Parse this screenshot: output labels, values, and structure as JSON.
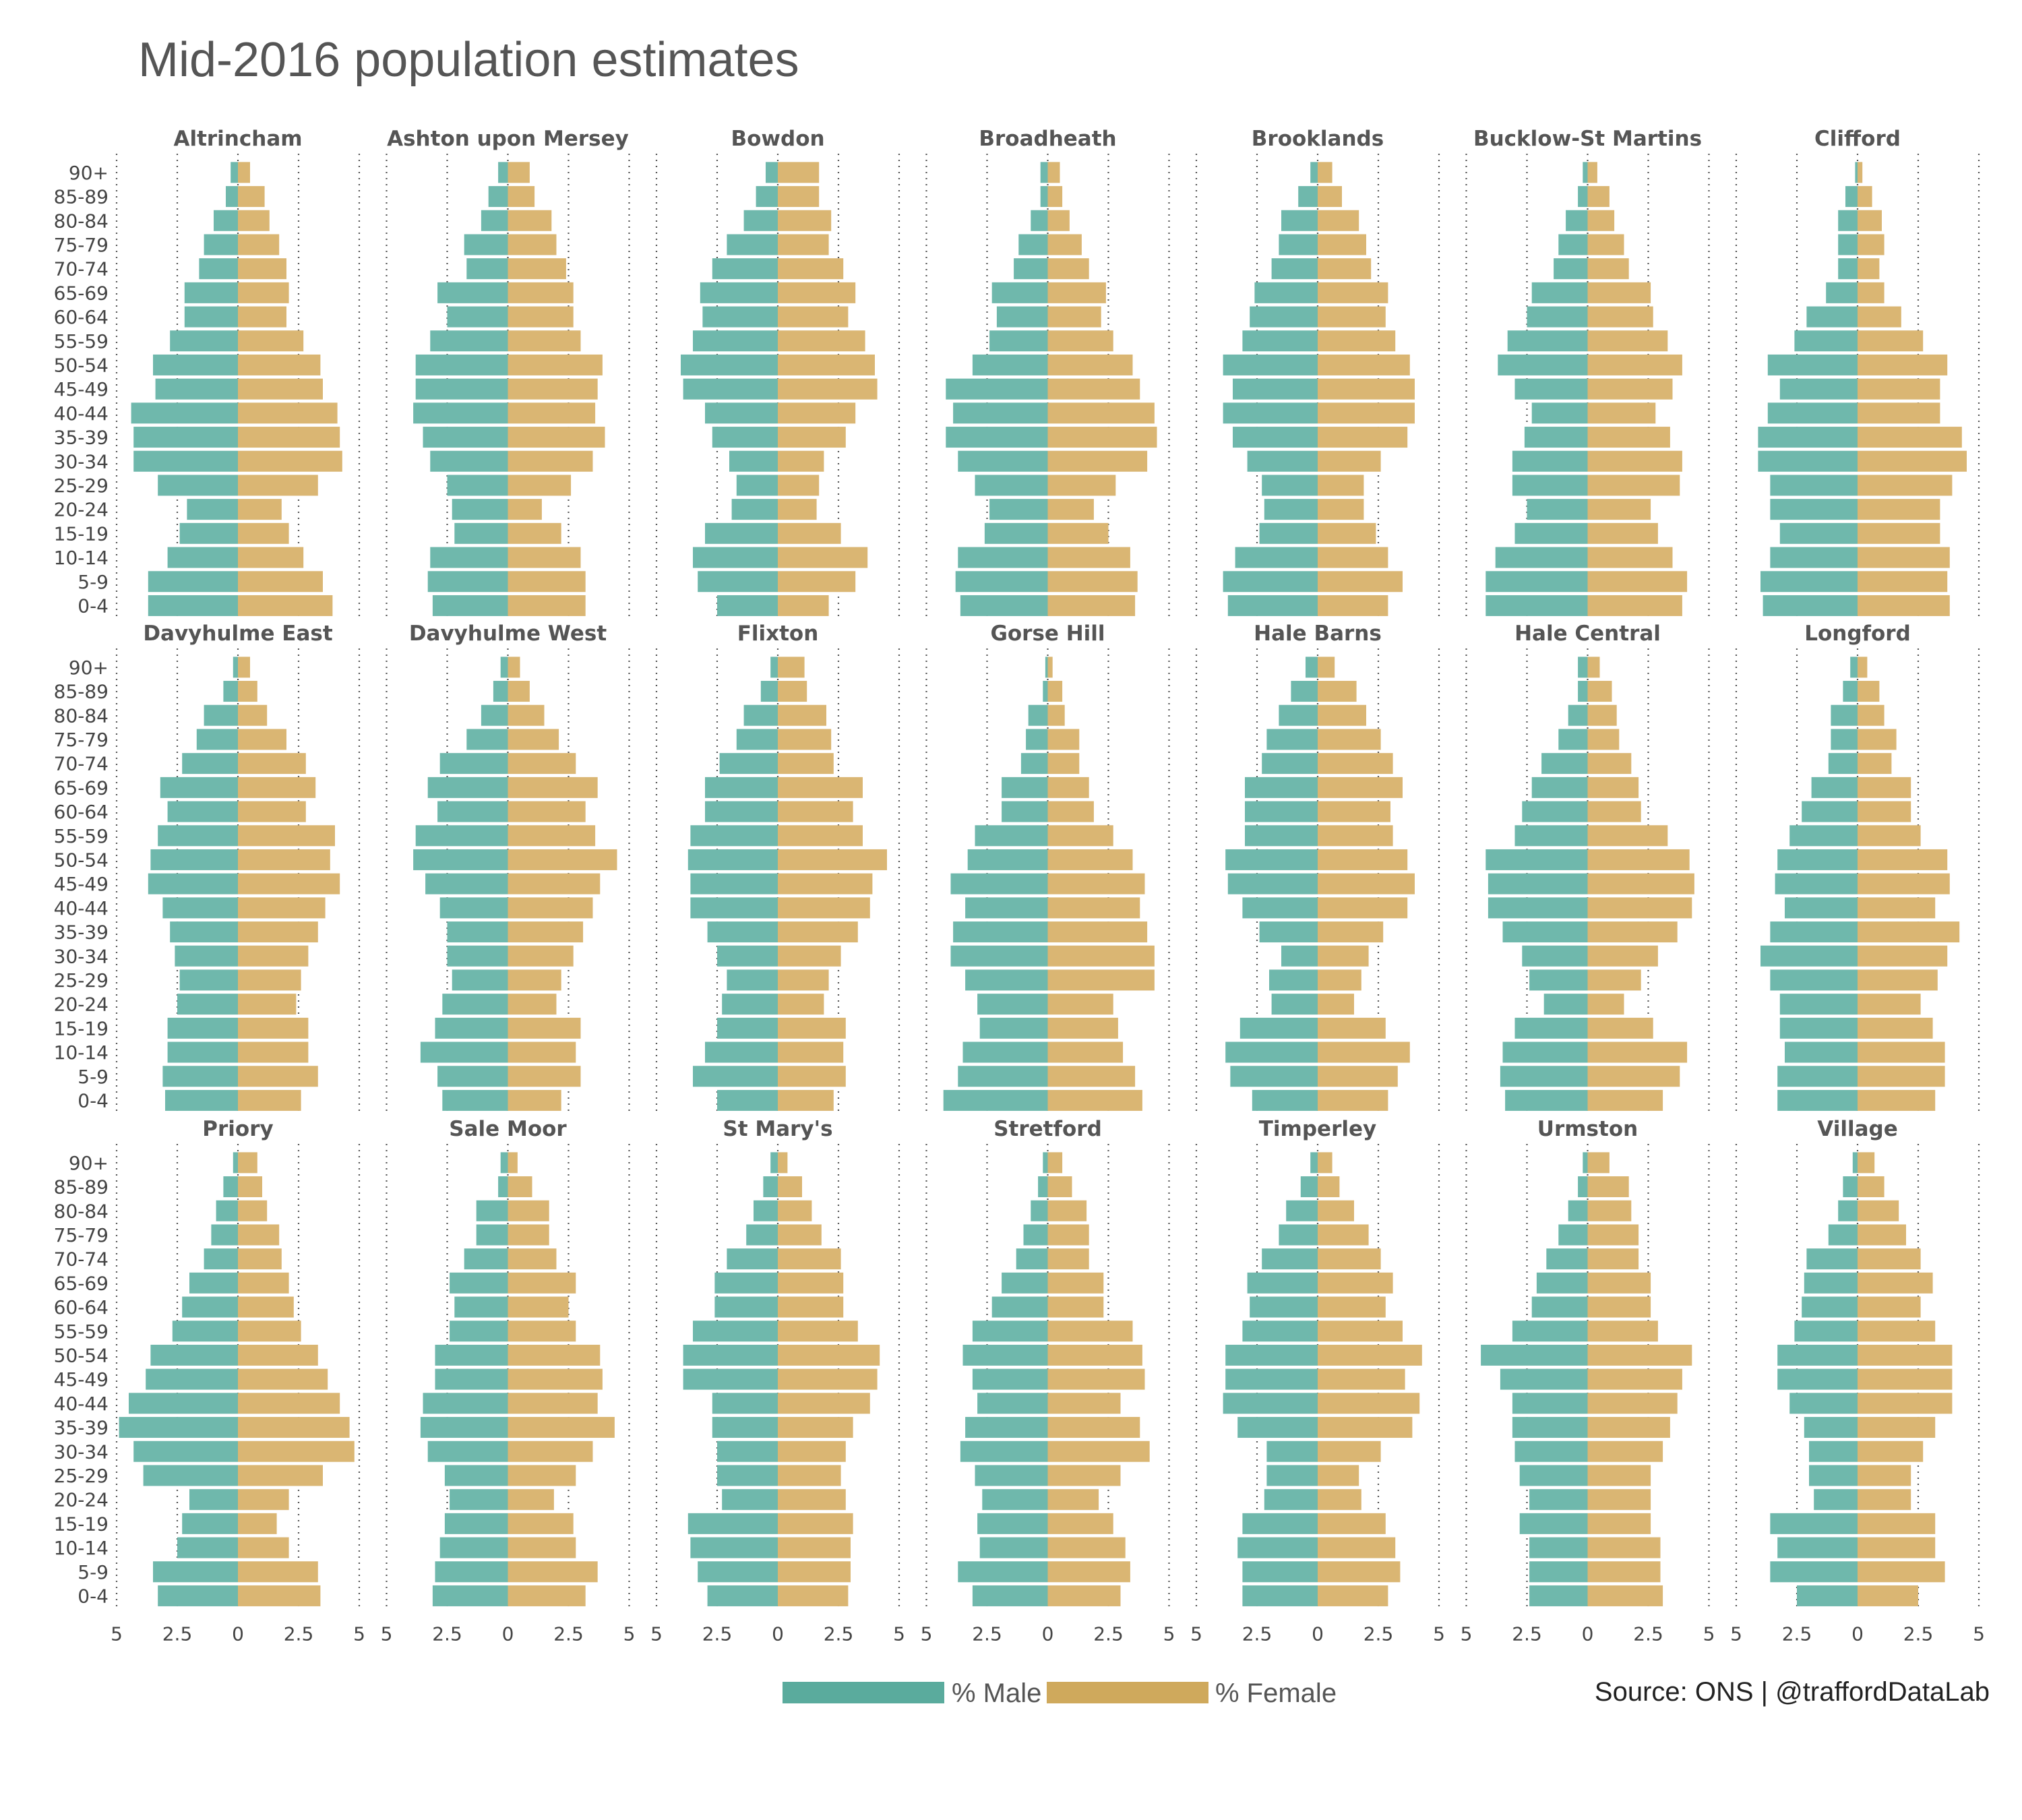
{
  "title": "Mid-2016 population estimates",
  "caption": "Source: ONS  |  @traffordDataLab",
  "colors": {
    "male": "#6fb8ac",
    "female": "#dab673",
    "male_legend": "#5aab9d",
    "female_legend": "#cfa95c"
  },
  "chart_data": {
    "type": "bar",
    "subtype": "population-pyramid-facets",
    "age_groups": [
      "0-4",
      "5-9",
      "10-14",
      "15-19",
      "20-24",
      "25-29",
      "30-34",
      "35-39",
      "40-44",
      "45-49",
      "50-54",
      "55-59",
      "60-64",
      "65-69",
      "70-74",
      "75-79",
      "80-84",
      "85-89",
      "90+"
    ],
    "xlim": [
      -5,
      5
    ],
    "xticks": [
      -5,
      -2.5,
      0,
      2.5,
      5
    ],
    "xtick_labels": [
      "5",
      "2.5",
      "0",
      "2.5",
      "5"
    ],
    "legend": {
      "position": "bottom",
      "entries": [
        "% Male",
        "% Female"
      ]
    },
    "grid": "vertical-dotted-at-ticks",
    "facets": [
      {
        "name": "Altrincham",
        "male": [
          3.7,
          3.7,
          2.9,
          2.4,
          2.1,
          3.3,
          4.3,
          4.3,
          4.4,
          3.4,
          3.5,
          2.8,
          2.2,
          2.2,
          1.6,
          1.4,
          1.0,
          0.5,
          0.3
        ],
        "female": [
          3.9,
          3.5,
          2.7,
          2.1,
          1.8,
          3.3,
          4.3,
          4.2,
          4.1,
          3.5,
          3.4,
          2.7,
          2.0,
          2.1,
          2.0,
          1.7,
          1.3,
          1.1,
          0.5
        ]
      },
      {
        "name": "Ashton upon Mersey",
        "male": [
          3.1,
          3.3,
          3.2,
          2.2,
          2.3,
          2.5,
          3.2,
          3.5,
          3.9,
          3.8,
          3.8,
          3.2,
          2.5,
          2.9,
          1.7,
          1.8,
          1.1,
          0.8,
          0.4
        ],
        "female": [
          3.2,
          3.2,
          3.0,
          2.2,
          1.4,
          2.6,
          3.5,
          4.0,
          3.6,
          3.7,
          3.9,
          3.0,
          2.7,
          2.7,
          2.4,
          2.0,
          1.8,
          1.1,
          0.9
        ]
      },
      {
        "name": "Bowdon",
        "male": [
          2.5,
          3.3,
          3.5,
          3.0,
          1.9,
          1.7,
          2.0,
          2.7,
          3.0,
          3.9,
          4.0,
          3.5,
          3.1,
          3.2,
          2.7,
          2.1,
          1.4,
          0.9,
          0.5
        ],
        "female": [
          2.1,
          3.2,
          3.7,
          2.6,
          1.6,
          1.7,
          1.9,
          2.8,
          3.2,
          4.1,
          4.0,
          3.6,
          2.9,
          3.2,
          2.7,
          2.1,
          2.2,
          1.7,
          1.7
        ]
      },
      {
        "name": "Broadheath",
        "male": [
          3.6,
          3.8,
          3.7,
          2.6,
          2.4,
          3.0,
          3.7,
          4.2,
          3.9,
          4.2,
          3.1,
          2.4,
          2.1,
          2.3,
          1.4,
          1.2,
          0.7,
          0.3,
          0.3
        ],
        "female": [
          3.6,
          3.7,
          3.4,
          2.5,
          1.9,
          2.8,
          4.1,
          4.5,
          4.4,
          3.8,
          3.5,
          2.7,
          2.2,
          2.4,
          1.7,
          1.4,
          0.9,
          0.6,
          0.5
        ]
      },
      {
        "name": "Brooklands",
        "male": [
          3.7,
          3.9,
          3.4,
          2.4,
          2.2,
          2.3,
          2.9,
          3.5,
          3.9,
          3.5,
          3.9,
          3.1,
          2.8,
          2.6,
          1.9,
          1.6,
          1.5,
          0.8,
          0.3
        ],
        "female": [
          2.9,
          3.5,
          2.9,
          2.4,
          1.9,
          1.9,
          2.6,
          3.7,
          4.0,
          4.0,
          3.8,
          3.2,
          2.8,
          2.9,
          2.2,
          2.0,
          1.7,
          1.0,
          0.6
        ]
      },
      {
        "name": "Bucklow-St Martins",
        "male": [
          4.2,
          4.2,
          3.8,
          3.0,
          2.5,
          3.1,
          3.1,
          2.6,
          2.3,
          3.0,
          3.7,
          3.3,
          2.5,
          2.3,
          1.4,
          1.2,
          0.9,
          0.4,
          0.2
        ],
        "female": [
          3.9,
          4.1,
          3.5,
          2.9,
          2.6,
          3.8,
          3.9,
          3.4,
          2.8,
          3.5,
          3.9,
          3.3,
          2.7,
          2.6,
          1.7,
          1.5,
          1.1,
          0.9,
          0.4
        ]
      },
      {
        "name": "Clifford",
        "male": [
          3.9,
          4.0,
          3.6,
          3.2,
          3.6,
          3.6,
          4.1,
          4.1,
          3.7,
          3.2,
          3.7,
          2.6,
          2.1,
          1.3,
          0.8,
          0.8,
          0.8,
          0.5,
          0.1
        ],
        "female": [
          3.8,
          3.7,
          3.8,
          3.4,
          3.4,
          3.9,
          4.5,
          4.3,
          3.4,
          3.4,
          3.7,
          2.7,
          1.8,
          1.1,
          0.9,
          1.1,
          1.0,
          0.6,
          0.2
        ]
      },
      {
        "name": "Davyhulme East",
        "male": [
          3.0,
          3.1,
          2.9,
          2.9,
          2.5,
          2.4,
          2.6,
          2.8,
          3.1,
          3.7,
          3.6,
          3.3,
          2.9,
          3.2,
          2.3,
          1.7,
          1.4,
          0.6,
          0.2
        ],
        "female": [
          2.6,
          3.3,
          2.9,
          2.9,
          2.4,
          2.6,
          2.9,
          3.3,
          3.6,
          4.2,
          3.8,
          4.0,
          2.8,
          3.2,
          2.8,
          2.0,
          1.2,
          0.8,
          0.5
        ]
      },
      {
        "name": "Davyhulme West",
        "male": [
          2.7,
          2.9,
          3.6,
          3.0,
          2.7,
          2.3,
          2.5,
          2.5,
          2.8,
          3.4,
          3.9,
          3.8,
          2.9,
          3.3,
          2.8,
          1.7,
          1.1,
          0.6,
          0.3
        ],
        "female": [
          2.2,
          3.0,
          2.8,
          3.0,
          2.0,
          2.2,
          2.7,
          3.1,
          3.5,
          3.8,
          4.5,
          3.6,
          3.2,
          3.7,
          2.8,
          2.1,
          1.5,
          0.9,
          0.5
        ]
      },
      {
        "name": "Flixton",
        "male": [
          2.5,
          3.5,
          3.0,
          2.5,
          2.3,
          2.1,
          2.5,
          2.9,
          3.6,
          3.6,
          3.7,
          3.6,
          3.0,
          3.0,
          2.4,
          1.7,
          1.4,
          0.7,
          0.3
        ],
        "female": [
          2.3,
          2.8,
          2.7,
          2.8,
          1.9,
          2.1,
          2.6,
          3.3,
          3.8,
          3.9,
          4.5,
          3.5,
          3.1,
          3.5,
          2.3,
          2.2,
          2.0,
          1.2,
          1.1
        ]
      },
      {
        "name": "Gorse Hill",
        "male": [
          4.3,
          3.7,
          3.5,
          2.8,
          2.9,
          3.4,
          4.0,
          3.9,
          3.4,
          4.0,
          3.3,
          3.0,
          1.9,
          1.9,
          1.1,
          0.9,
          0.8,
          0.2,
          0.1
        ],
        "female": [
          3.9,
          3.6,
          3.1,
          2.9,
          2.7,
          4.4,
          4.4,
          4.1,
          3.8,
          4.0,
          3.5,
          2.7,
          1.9,
          1.7,
          1.3,
          1.3,
          0.7,
          0.6,
          0.2
        ]
      },
      {
        "name": "Hale Barns",
        "male": [
          2.7,
          3.6,
          3.8,
          3.2,
          1.9,
          2.0,
          1.5,
          2.4,
          3.1,
          3.7,
          3.8,
          3.0,
          3.0,
          3.0,
          2.3,
          2.1,
          1.6,
          1.1,
          0.5
        ],
        "female": [
          2.9,
          3.3,
          3.8,
          2.8,
          1.5,
          1.8,
          2.1,
          2.7,
          3.7,
          4.0,
          3.7,
          3.1,
          3.0,
          3.5,
          3.1,
          2.6,
          2.0,
          1.6,
          0.7
        ]
      },
      {
        "name": "Hale Central",
        "male": [
          3.4,
          3.6,
          3.5,
          3.0,
          1.8,
          2.4,
          2.7,
          3.5,
          4.1,
          4.1,
          4.2,
          3.0,
          2.7,
          2.3,
          1.9,
          1.2,
          0.8,
          0.4,
          0.4
        ],
        "female": [
          3.1,
          3.8,
          4.1,
          2.7,
          1.5,
          2.2,
          2.9,
          3.7,
          4.3,
          4.4,
          4.2,
          3.3,
          2.2,
          2.1,
          1.8,
          1.3,
          1.2,
          1.0,
          0.5
        ]
      },
      {
        "name": "Longford",
        "male": [
          3.3,
          3.3,
          3.0,
          3.2,
          3.2,
          3.6,
          4.0,
          3.6,
          3.0,
          3.4,
          3.3,
          2.8,
          2.3,
          1.9,
          1.2,
          1.1,
          1.1,
          0.6,
          0.3
        ],
        "female": [
          3.2,
          3.6,
          3.6,
          3.1,
          2.6,
          3.3,
          3.7,
          4.2,
          3.2,
          3.8,
          3.7,
          2.6,
          2.2,
          2.2,
          1.4,
          1.6,
          1.1,
          0.9,
          0.4
        ]
      },
      {
        "name": "Priory",
        "male": [
          3.3,
          3.5,
          2.5,
          2.3,
          2.0,
          3.9,
          4.3,
          4.9,
          4.5,
          3.8,
          3.6,
          2.7,
          2.3,
          2.0,
          1.4,
          1.1,
          0.9,
          0.6,
          0.2
        ],
        "female": [
          3.4,
          3.3,
          2.1,
          1.6,
          2.1,
          3.5,
          4.8,
          4.6,
          4.2,
          3.7,
          3.3,
          2.6,
          2.3,
          2.1,
          1.8,
          1.7,
          1.2,
          1.0,
          0.8
        ]
      },
      {
        "name": "Sale Moor",
        "male": [
          3.1,
          3.0,
          2.8,
          2.6,
          2.4,
          2.6,
          3.3,
          3.6,
          3.5,
          3.0,
          3.0,
          2.4,
          2.2,
          2.4,
          1.8,
          1.3,
          1.3,
          0.4,
          0.3
        ],
        "female": [
          3.2,
          3.7,
          2.8,
          2.7,
          1.9,
          2.8,
          3.5,
          4.4,
          3.7,
          3.9,
          3.8,
          2.8,
          2.5,
          2.8,
          2.0,
          1.7,
          1.7,
          1.0,
          0.4
        ]
      },
      {
        "name": "St Mary's",
        "male": [
          2.9,
          3.3,
          3.6,
          3.7,
          2.3,
          2.5,
          2.5,
          2.7,
          2.7,
          3.9,
          3.9,
          3.5,
          2.6,
          2.6,
          2.1,
          1.3,
          1.0,
          0.6,
          0.3
        ],
        "female": [
          2.9,
          3.0,
          3.0,
          3.1,
          2.8,
          2.6,
          2.8,
          3.1,
          3.8,
          4.1,
          4.2,
          3.3,
          2.7,
          2.7,
          2.6,
          1.8,
          1.4,
          1.0,
          0.4
        ]
      },
      {
        "name": "Stretford",
        "male": [
          3.1,
          3.7,
          2.8,
          2.9,
          2.7,
          3.0,
          3.6,
          3.4,
          2.9,
          3.1,
          3.5,
          3.1,
          2.3,
          1.9,
          1.3,
          1.0,
          0.7,
          0.4,
          0.2
        ],
        "female": [
          3.0,
          3.4,
          3.2,
          2.7,
          2.1,
          3.0,
          4.2,
          3.8,
          3.0,
          4.0,
          3.9,
          3.5,
          2.3,
          2.3,
          1.7,
          1.7,
          1.6,
          1.0,
          0.6
        ]
      },
      {
        "name": "Timperley",
        "male": [
          3.1,
          3.1,
          3.3,
          3.1,
          2.2,
          2.1,
          2.1,
          3.3,
          3.9,
          3.8,
          3.8,
          3.1,
          2.8,
          2.9,
          2.3,
          1.6,
          1.3,
          0.7,
          0.3
        ],
        "female": [
          2.9,
          3.4,
          3.2,
          2.8,
          1.8,
          1.7,
          2.6,
          3.9,
          4.2,
          3.6,
          4.3,
          3.5,
          2.8,
          3.1,
          2.6,
          2.1,
          1.5,
          0.9,
          0.6
        ]
      },
      {
        "name": "Urmston",
        "male": [
          2.4,
          2.4,
          2.4,
          2.8,
          2.4,
          2.8,
          3.0,
          3.1,
          3.1,
          3.6,
          4.4,
          3.1,
          2.3,
          2.1,
          1.7,
          1.2,
          0.8,
          0.4,
          0.2
        ],
        "female": [
          3.1,
          3.0,
          3.0,
          2.6,
          2.6,
          2.6,
          3.1,
          3.4,
          3.7,
          3.9,
          4.3,
          2.9,
          2.6,
          2.6,
          2.1,
          2.1,
          1.8,
          1.7,
          0.9
        ]
      },
      {
        "name": "Village",
        "male": [
          2.5,
          3.6,
          3.3,
          3.6,
          1.8,
          2.0,
          2.0,
          2.2,
          2.8,
          3.3,
          3.3,
          2.6,
          2.3,
          2.2,
          2.1,
          1.2,
          0.8,
          0.6,
          0.2
        ],
        "female": [
          2.5,
          3.6,
          3.2,
          3.2,
          2.2,
          2.2,
          2.7,
          3.2,
          3.9,
          3.9,
          3.9,
          3.2,
          2.6,
          3.1,
          2.6,
          2.0,
          1.7,
          1.1,
          0.7
        ]
      }
    ]
  }
}
